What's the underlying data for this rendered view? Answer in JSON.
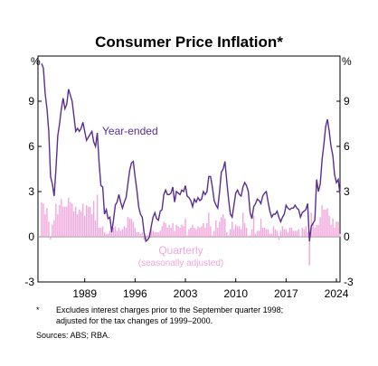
{
  "chart_data": {
    "type": "bar-line",
    "title": "Consumer Price Inflation*",
    "y_unit": "%",
    "y2_unit": "%",
    "annotations": [
      "Year-ended",
      "Quarterly",
      "(seasonally adjusted)"
    ],
    "footnote_marker": "*",
    "footnotes": [
      "Excludes interest charges prior to the September quarter 1998;",
      "adjusted for the tax changes of 1999–2000."
    ],
    "sources": "Sources: ABS; RBA.",
    "xlim": [
      1982.5,
      2024.5
    ],
    "xticks": [
      1989,
      1996,
      2003,
      2010,
      2017,
      2024
    ],
    "ylim": [
      -3,
      12
    ],
    "yticks": [
      -3,
      0,
      3,
      6,
      9
    ],
    "y2lim": [
      -3,
      12
    ],
    "y2ticks": [
      -3,
      0,
      3,
      6,
      9
    ],
    "x": [
      1983,
      1983.25,
      1983.5,
      1983.75,
      1984,
      1984.25,
      1984.5,
      1984.75,
      1985,
      1985.25,
      1985.5,
      1985.75,
      1986,
      1986.25,
      1986.5,
      1986.75,
      1987,
      1987.25,
      1987.5,
      1987.75,
      1988,
      1988.25,
      1988.5,
      1988.75,
      1989,
      1989.25,
      1989.5,
      1989.75,
      1990,
      1990.25,
      1990.5,
      1990.75,
      1991,
      1991.25,
      1991.5,
      1991.75,
      1992,
      1992.25,
      1992.5,
      1992.75,
      1993,
      1993.25,
      1993.5,
      1993.75,
      1994,
      1994.25,
      1994.5,
      1994.75,
      1995,
      1995.25,
      1995.5,
      1995.75,
      1996,
      1996.25,
      1996.5,
      1996.75,
      1997,
      1997.25,
      1997.5,
      1997.75,
      1998,
      1998.25,
      1998.5,
      1998.75,
      1999,
      1999.25,
      1999.5,
      1999.75,
      2000,
      2000.25,
      2000.5,
      2000.75,
      2001,
      2001.25,
      2001.5,
      2001.75,
      2002,
      2002.25,
      2002.5,
      2002.75,
      2003,
      2003.25,
      2003.5,
      2003.75,
      2004,
      2004.25,
      2004.5,
      2004.75,
      2005,
      2005.25,
      2005.5,
      2005.75,
      2006,
      2006.25,
      2006.5,
      2006.75,
      2007,
      2007.25,
      2007.5,
      2007.75,
      2008,
      2008.25,
      2008.5,
      2008.75,
      2009,
      2009.25,
      2009.5,
      2009.75,
      2010,
      2010.25,
      2010.5,
      2010.75,
      2011,
      2011.25,
      2011.5,
      2011.75,
      2012,
      2012.25,
      2012.5,
      2012.75,
      2013,
      2013.25,
      2013.5,
      2013.75,
      2014,
      2014.25,
      2014.5,
      2014.75,
      2015,
      2015.25,
      2015.5,
      2015.75,
      2016,
      2016.25,
      2016.5,
      2016.75,
      2017,
      2017.25,
      2017.5,
      2017.75,
      2018,
      2018.25,
      2018.5,
      2018.75,
      2019,
      2019.25,
      2019.5,
      2019.75,
      2020,
      2020.25,
      2020.5,
      2020.75,
      2021,
      2021.25,
      2021.5,
      2021.75,
      2022,
      2022.25,
      2022.5,
      2022.75,
      2023,
      2023.25,
      2023.5,
      2023.75,
      2024,
      2024.25,
      2024.5
    ],
    "series": [
      {
        "name": "Quarterly",
        "kind": "bar",
        "color": "#f2a6dc",
        "values": [
          2.3,
          2.2,
          1.5,
          1.9,
          1.0,
          -0.2,
          0.8,
          1.1,
          2.2,
          1.5,
          2.1,
          2.5,
          2.0,
          2.0,
          2.0,
          2.6,
          2.3,
          2.2,
          1.7,
          2.0,
          1.5,
          1.8,
          1.7,
          2.2,
          1.4,
          2.1,
          2.0,
          2.0,
          1.5,
          2.4,
          1.1,
          2.8,
          0.6,
          0.6,
          0.7,
          0.3,
          0.2,
          0.2,
          0.4,
          0.5,
          0.6,
          0.7,
          0.4,
          0.6,
          0.4,
          0.5,
          0.7,
          0.6,
          1.3,
          1.2,
          1.2,
          1.0,
          0.6,
          0.3,
          0.3,
          0.2,
          0.3,
          -0.2,
          -0.3,
          0.1,
          0.3,
          0.5,
          0.4,
          0.3,
          0.3,
          0.3,
          0.4,
          0.7,
          1.0,
          0.9,
          0.6,
          0.8,
          0.6,
          0.9,
          0.4,
          0.8,
          0.7,
          0.6,
          0.8,
          0.7,
          1.2,
          0.1,
          0.5,
          0.6,
          0.8,
          0.6,
          0.5,
          0.7,
          0.6,
          0.7,
          0.9,
          0.6,
          0.9,
          1.6,
          0.7,
          0.1,
          0.4,
          1.1,
          0.6,
          1.0,
          1.3,
          1.5,
          1.2,
          0.3,
          0.1,
          0.5,
          1.0,
          0.5,
          0.8,
          0.7,
          0.7,
          0.5,
          1.6,
          0.9,
          0.6,
          0.0,
          0.1,
          0.5,
          1.4,
          0.2,
          0.4,
          0.4,
          1.2,
          0.6,
          0.6,
          0.5,
          0.5,
          0.2,
          0.2,
          0.7,
          0.5,
          0.4,
          -0.2,
          0.4,
          0.7,
          0.5,
          0.5,
          0.3,
          0.6,
          0.6,
          0.4,
          0.4,
          0.4,
          0.5,
          0.0,
          0.6,
          0.5,
          0.7,
          0.3,
          -1.9,
          1.6,
          0.9,
          0.6,
          0.8,
          0.8,
          1.3,
          2.1,
          1.8,
          1.8,
          1.9,
          1.4,
          0.8,
          1.2,
          0.6,
          1.0,
          1.0,
          0.2
        ]
      },
      {
        "name": "Year-ended",
        "kind": "line",
        "color": "#5a2d91",
        "values": [
          11.5,
          11.2,
          9.5,
          8.5,
          7.0,
          4.0,
          3.5,
          2.7,
          4.5,
          6.7,
          7.5,
          8.5,
          9.2,
          8.5,
          8.8,
          9.8,
          9.4,
          9.0,
          8.0,
          7.0,
          7.2,
          7.0,
          7.2,
          7.6,
          7.0,
          6.4,
          6.6,
          6.8,
          7.0,
          6.3,
          6.0,
          6.9,
          4.9,
          3.4,
          3.3,
          1.5,
          1.8,
          1.2,
          1.3,
          0.3,
          1.1,
          2.1,
          2.3,
          2.8,
          2.3,
          1.9,
          2.3,
          2.6,
          3.5,
          4.4,
          4.9,
          5.0,
          4.0,
          3.1,
          2.0,
          1.5,
          1.3,
          0.3,
          -0.3,
          -0.2,
          0.0,
          0.7,
          1.3,
          1.6,
          1.2,
          1.1,
          1.7,
          1.8,
          2.8,
          3.1,
          2.8,
          2.8,
          2.9,
          3.3,
          2.3,
          3.0,
          2.9,
          2.8,
          3.1,
          3.0,
          3.4,
          2.7,
          2.6,
          2.4,
          2.0,
          2.5,
          2.3,
          2.6,
          2.4,
          2.5,
          3.0,
          2.8,
          3.0,
          4.0,
          4.0,
          3.3,
          2.4,
          2.1,
          1.9,
          3.0,
          4.3,
          4.5,
          5.0,
          3.7,
          2.5,
          1.5,
          1.3,
          2.1,
          2.9,
          3.1,
          2.8,
          2.7,
          3.3,
          3.6,
          3.4,
          3.0,
          1.6,
          1.2,
          2.0,
          2.2,
          2.5,
          2.4,
          2.2,
          2.7,
          2.9,
          3.0,
          2.3,
          1.7,
          1.3,
          1.5,
          1.5,
          1.7,
          1.3,
          1.0,
          1.3,
          1.5,
          2.1,
          1.9,
          1.8,
          1.9,
          1.9,
          2.1,
          1.9,
          1.8,
          1.3,
          1.6,
          1.7,
          1.8,
          2.2,
          -0.3,
          0.7,
          0.9,
          1.1,
          3.8,
          3.0,
          3.5,
          5.1,
          6.1,
          7.3,
          7.8,
          7.0,
          6.0,
          5.4,
          4.1,
          3.6,
          3.8,
          2.8
        ]
      }
    ]
  }
}
